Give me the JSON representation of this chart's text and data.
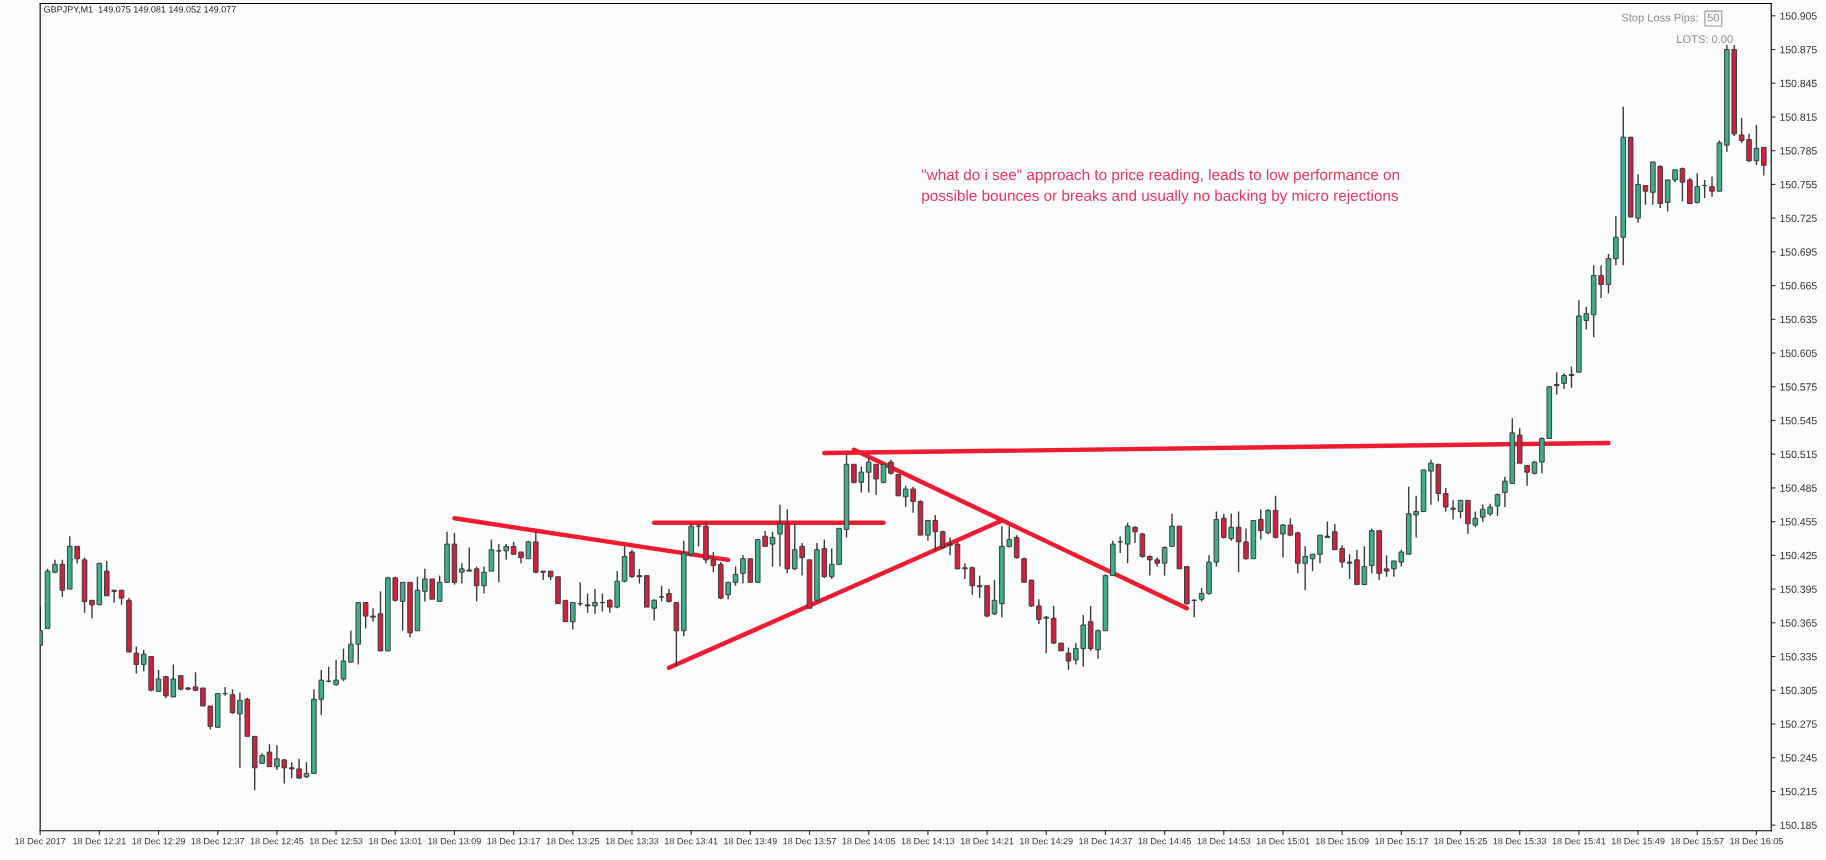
{
  "chart_data": {
    "type": "candlestick",
    "title": "GBPJPY,M1  149.075 149.081 149.052 149.077",
    "annotations": [
      "\"what do i see\" approach to price reading, leads to low performance on\npossible bounces or breaks and usually no backing by micro rejections",
      "Stop Loss Pips:",
      "50",
      "LOTS: 0.00"
    ],
    "x": [
      "2017-12-18T12:13",
      "2017-12-18T12:14",
      "2017-12-18T12:15",
      "2017-12-18T12:16",
      "2017-12-18T12:17",
      "2017-12-18T12:18",
      "2017-12-18T12:19",
      "2017-12-18T12:20",
      "2017-12-18T12:21",
      "2017-12-18T12:22",
      "2017-12-18T12:23",
      "2017-12-18T12:24",
      "2017-12-18T12:25",
      "2017-12-18T12:26",
      "2017-12-18T12:27",
      "2017-12-18T12:28",
      "2017-12-18T12:29",
      "2017-12-18T12:30",
      "2017-12-18T12:31",
      "2017-12-18T12:32",
      "2017-12-18T12:33",
      "2017-12-18T12:34",
      "2017-12-18T12:35",
      "2017-12-18T12:36",
      "2017-12-18T12:37",
      "2017-12-18T12:38",
      "2017-12-18T12:39",
      "2017-12-18T12:40",
      "2017-12-18T12:41",
      "2017-12-18T12:42",
      "2017-12-18T12:43",
      "2017-12-18T12:44",
      "2017-12-18T12:45",
      "2017-12-18T12:46",
      "2017-12-18T12:47",
      "2017-12-18T12:48",
      "2017-12-18T12:49",
      "2017-12-18T12:50",
      "2017-12-18T12:51",
      "2017-12-18T12:52",
      "2017-12-18T12:53",
      "2017-12-18T12:54",
      "2017-12-18T12:55",
      "2017-12-18T12:56",
      "2017-12-18T12:57",
      "2017-12-18T12:58",
      "2017-12-18T12:59",
      "2017-12-18T13:00",
      "2017-12-18T13:01",
      "2017-12-18T13:02",
      "2017-12-18T13:03",
      "2017-12-18T13:04",
      "2017-12-18T13:05",
      "2017-12-18T13:06",
      "2017-12-18T13:07",
      "2017-12-18T13:08",
      "2017-12-18T13:09",
      "2017-12-18T13:10",
      "2017-12-18T13:11",
      "2017-12-18T13:12",
      "2017-12-18T13:13",
      "2017-12-18T13:14",
      "2017-12-18T13:15",
      "2017-12-18T13:16",
      "2017-12-18T13:17",
      "2017-12-18T13:18",
      "2017-12-18T13:19",
      "2017-12-18T13:20",
      "2017-12-18T13:21",
      "2017-12-18T13:22",
      "2017-12-18T13:23",
      "2017-12-18T13:24",
      "2017-12-18T13:25",
      "2017-12-18T13:26",
      "2017-12-18T13:27",
      "2017-12-18T13:28",
      "2017-12-18T13:29",
      "2017-12-18T13:30",
      "2017-12-18T13:31",
      "2017-12-18T13:32",
      "2017-12-18T13:33",
      "2017-12-18T13:34",
      "2017-12-18T13:35",
      "2017-12-18T13:36",
      "2017-12-18T13:37",
      "2017-12-18T13:38",
      "2017-12-18T13:39",
      "2017-12-18T13:40",
      "2017-12-18T13:41",
      "2017-12-18T13:42",
      "2017-12-18T13:43",
      "2017-12-18T13:44",
      "2017-12-18T13:45",
      "2017-12-18T13:46",
      "2017-12-18T13:47",
      "2017-12-18T13:48",
      "2017-12-18T13:49",
      "2017-12-18T13:50",
      "2017-12-18T13:51",
      "2017-12-18T13:52",
      "2017-12-18T13:53",
      "2017-12-18T13:54",
      "2017-12-18T13:55",
      "2017-12-18T13:56",
      "2017-12-18T13:57",
      "2017-12-18T13:58",
      "2017-12-18T13:59",
      "2017-12-18T14:00",
      "2017-12-18T14:01",
      "2017-12-18T14:02",
      "2017-12-18T14:03",
      "2017-12-18T14:04",
      "2017-12-18T14:05",
      "2017-12-18T14:06",
      "2017-12-18T14:07",
      "2017-12-18T14:08",
      "2017-12-18T14:09",
      "2017-12-18T14:10",
      "2017-12-18T14:11",
      "2017-12-18T14:12",
      "2017-12-18T14:13",
      "2017-12-18T14:14",
      "2017-12-18T14:15",
      "2017-12-18T14:16",
      "2017-12-18T14:17",
      "2017-12-18T14:18",
      "2017-12-18T14:19",
      "2017-12-18T14:20",
      "2017-12-18T14:21",
      "2017-12-18T14:22",
      "2017-12-18T14:23",
      "2017-12-18T14:24",
      "2017-12-18T14:25",
      "2017-12-18T14:26",
      "2017-12-18T14:27",
      "2017-12-18T14:28",
      "2017-12-18T14:29",
      "2017-12-18T14:30",
      "2017-12-18T14:31",
      "2017-12-18T14:32",
      "2017-12-18T14:33",
      "2017-12-18T14:34",
      "2017-12-18T14:35",
      "2017-12-18T14:36",
      "2017-12-18T14:37",
      "2017-12-18T14:38",
      "2017-12-18T14:39",
      "2017-12-18T14:40",
      "2017-12-18T14:41",
      "2017-12-18T14:42",
      "2017-12-18T14:43",
      "2017-12-18T14:44",
      "2017-12-18T14:45",
      "2017-12-18T14:46",
      "2017-12-18T14:47",
      "2017-12-18T14:48",
      "2017-12-18T14:49",
      "2017-12-18T14:50",
      "2017-12-18T14:51",
      "2017-12-18T14:52",
      "2017-12-18T14:53",
      "2017-12-18T14:54",
      "2017-12-18T14:55",
      "2017-12-18T14:56",
      "2017-12-18T14:57",
      "2017-12-18T14:58",
      "2017-12-18T14:59",
      "2017-12-18T15:00",
      "2017-12-18T15:01",
      "2017-12-18T15:02",
      "2017-12-18T15:03",
      "2017-12-18T15:04",
      "2017-12-18T15:05",
      "2017-12-18T15:06",
      "2017-12-18T15:07",
      "2017-12-18T15:08",
      "2017-12-18T15:09",
      "2017-12-18T15:10",
      "2017-12-18T15:11",
      "2017-12-18T15:12",
      "2017-12-18T15:13",
      "2017-12-18T15:14",
      "2017-12-18T15:15",
      "2017-12-18T15:16",
      "2017-12-18T15:17",
      "2017-12-18T15:18",
      "2017-12-18T15:19",
      "2017-12-18T15:20",
      "2017-12-18T15:21",
      "2017-12-18T15:22",
      "2017-12-18T15:23",
      "2017-12-18T15:24",
      "2017-12-18T15:25",
      "2017-12-18T15:26",
      "2017-12-18T15:27",
      "2017-12-18T15:28",
      "2017-12-18T15:29",
      "2017-12-18T15:30",
      "2017-12-18T15:31",
      "2017-12-18T15:32",
      "2017-12-18T15:33",
      "2017-12-18T15:34",
      "2017-12-18T15:35",
      "2017-12-18T15:36",
      "2017-12-18T15:37",
      "2017-12-18T15:38",
      "2017-12-18T15:39",
      "2017-12-18T15:40",
      "2017-12-18T15:41",
      "2017-12-18T15:42",
      "2017-12-18T15:43",
      "2017-12-18T15:44",
      "2017-12-18T15:45",
      "2017-12-18T15:46",
      "2017-12-18T15:47",
      "2017-12-18T15:48",
      "2017-12-18T15:49",
      "2017-12-18T15:50",
      "2017-12-18T15:51",
      "2017-12-18T15:52",
      "2017-12-18T15:53",
      "2017-12-18T15:54",
      "2017-12-18T15:55",
      "2017-12-18T15:56",
      "2017-12-18T15:57",
      "2017-12-18T15:58",
      "2017-12-18T15:59",
      "2017-12-18T16:00",
      "2017-12-18T16:01",
      "2017-12-18T16:02",
      "2017-12-18T16:03",
      "2017-12-18T16:04",
      "2017-12-18T16:05",
      "2017-12-18T16:06"
    ],
    "ohlc": [
      [
        150.345,
        150.38,
        150.345,
        150.358
      ],
      [
        150.36,
        150.413,
        150.36,
        150.411
      ],
      [
        150.41,
        150.421,
        150.409,
        150.417
      ],
      [
        150.417,
        150.421,
        150.388,
        150.394
      ],
      [
        150.395,
        150.442,
        150.395,
        150.433
      ],
      [
        150.433,
        150.433,
        150.418,
        150.422
      ],
      [
        150.421,
        150.423,
        150.374,
        150.384
      ],
      [
        150.385,
        150.385,
        150.369,
        150.381
      ],
      [
        150.381,
        150.418,
        150.381,
        150.418
      ],
      [
        150.411,
        150.42,
        150.389,
        150.389
      ],
      [
        150.394,
        150.394,
        150.383,
        150.393
      ],
      [
        150.394,
        150.394,
        150.381,
        150.387
      ],
      [
        150.385,
        150.387,
        150.339,
        150.339
      ],
      [
        150.338,
        150.344,
        150.32,
        150.328
      ],
      [
        150.328,
        150.341,
        150.322,
        150.337
      ],
      [
        150.335,
        150.335,
        150.304,
        150.305
      ],
      [
        150.304,
        150.323,
        150.304,
        150.315
      ],
      [
        150.317,
        150.318,
        150.298,
        150.3
      ],
      [
        150.299,
        150.328,
        150.299,
        150.315
      ],
      [
        150.318,
        150.318,
        150.305,
        150.306
      ],
      [
        150.307,
        150.308,
        150.305,
        150.306
      ],
      [
        150.308,
        150.321,
        150.304,
        150.305
      ],
      [
        150.307,
        150.307,
        150.291,
        150.291
      ],
      [
        150.291,
        150.291,
        150.27,
        150.273
      ],
      [
        150.272,
        150.302,
        150.272,
        150.302
      ],
      [
        150.302,
        150.308,
        150.3,
        150.302
      ],
      [
        150.301,
        150.306,
        150.284,
        150.285
      ],
      [
        150.284,
        150.303,
        150.236,
        150.296
      ],
      [
        150.297,
        150.298,
        150.264,
        150.264
      ],
      [
        150.264,
        150.264,
        150.216,
        150.236
      ],
      [
        150.24,
        150.249,
        150.24,
        150.247
      ],
      [
        150.25,
        150.257,
        150.237,
        150.237
      ],
      [
        150.237,
        150.256,
        150.234,
        150.244
      ],
      [
        150.243,
        150.244,
        150.222,
        150.236
      ],
      [
        150.236,
        150.241,
        150.227,
        150.235
      ],
      [
        150.235,
        150.244,
        150.226,
        150.227
      ],
      [
        150.228,
        150.241,
        150.227,
        150.231
      ],
      [
        150.231,
        150.306,
        150.231,
        150.297
      ],
      [
        150.297,
        150.323,
        150.283,
        150.314
      ],
      [
        150.313,
        150.326,
        150.312,
        150.313
      ],
      [
        150.31,
        150.332,
        150.309,
        150.314
      ],
      [
        150.315,
        150.342,
        150.313,
        150.331
      ],
      [
        150.33,
        150.358,
        150.33,
        150.346
      ],
      [
        150.346,
        150.383,
        150.328,
        150.383
      ],
      [
        150.383,
        150.383,
        150.36,
        150.371
      ],
      [
        150.371,
        150.378,
        150.366,
        150.37
      ],
      [
        150.373,
        150.393,
        150.34,
        150.34
      ],
      [
        150.34,
        150.406,
        150.34,
        150.405
      ],
      [
        150.405,
        150.406,
        150.384,
        150.385
      ],
      [
        150.384,
        150.401,
        150.358,
        150.401
      ],
      [
        150.401,
        150.401,
        150.352,
        150.356
      ],
      [
        150.358,
        150.406,
        150.358,
        150.394
      ],
      [
        150.393,
        150.413,
        150.384,
        150.404
      ],
      [
        150.404,
        150.404,
        150.386,
        150.386
      ],
      [
        150.384,
        150.407,
        150.384,
        150.401
      ],
      [
        150.401,
        150.446,
        150.401,
        150.435
      ],
      [
        150.435,
        150.445,
        150.399,
        150.401
      ],
      [
        150.41,
        150.418,
        150.4,
        150.413
      ],
      [
        150.412,
        150.432,
        150.411,
        150.411
      ],
      [
        150.413,
        150.415,
        150.384,
        150.398
      ],
      [
        150.398,
        150.415,
        150.391,
        150.41
      ],
      [
        150.411,
        150.439,
        150.411,
        150.43
      ],
      [
        150.429,
        150.435,
        150.401,
        150.429
      ],
      [
        150.429,
        150.435,
        150.421,
        150.433
      ],
      [
        150.433,
        150.437,
        150.426,
        150.426
      ],
      [
        150.428,
        150.428,
        150.418,
        150.423
      ],
      [
        150.422,
        150.438,
        150.422,
        150.437
      ],
      [
        150.437,
        150.446,
        150.409,
        150.41
      ],
      [
        150.411,
        150.411,
        150.403,
        150.41
      ],
      [
        150.411,
        150.411,
        150.403,
        150.406
      ],
      [
        150.406,
        150.406,
        150.382,
        150.382
      ],
      [
        150.385,
        150.385,
        150.366,
        150.366
      ],
      [
        150.366,
        150.383,
        150.359,
        150.383
      ],
      [
        150.382,
        150.401,
        150.38,
        150.382
      ],
      [
        150.381,
        150.391,
        150.374,
        150.38
      ],
      [
        150.38,
        150.395,
        150.373,
        150.383
      ],
      [
        150.383,
        150.391,
        150.375,
        150.383
      ],
      [
        150.385,
        150.386,
        150.374,
        150.379
      ],
      [
        150.379,
        150.411,
        150.378,
        150.402
      ],
      [
        150.402,
        150.433,
        150.401,
        150.424
      ],
      [
        150.428,
        150.43,
        150.405,
        150.406
      ],
      [
        150.407,
        150.413,
        150.4,
        150.406
      ],
      [
        150.407,
        150.407,
        150.379,
        150.379
      ],
      [
        150.378,
        150.386,
        150.367,
        150.385
      ],
      [
        150.388,
        150.398,
        150.384,
        150.388
      ],
      [
        150.391,
        150.395,
        150.383,
        150.384
      ],
      [
        150.383,
        150.383,
        150.326,
        150.358
      ],
      [
        150.358,
        150.438,
        150.353,
        150.427
      ],
      [
        150.426,
        150.452,
        150.424,
        150.451
      ],
      [
        150.451,
        150.453,
        150.433,
        150.451
      ],
      [
        150.451,
        150.453,
        150.418,
        150.421
      ],
      [
        150.421,
        150.428,
        150.41,
        150.416
      ],
      [
        150.417,
        150.419,
        150.386,
        150.387
      ],
      [
        150.39,
        150.401,
        150.386,
        150.401
      ],
      [
        150.401,
        150.415,
        150.398,
        150.408
      ],
      [
        150.409,
        150.425,
        150.4,
        150.422
      ],
      [
        150.422,
        150.422,
        150.401,
        150.401
      ],
      [
        150.401,
        150.439,
        150.401,
        150.439
      ],
      [
        150.442,
        150.447,
        150.433,
        150.433
      ],
      [
        150.435,
        150.446,
        150.415,
        150.441
      ],
      [
        150.444,
        150.47,
        150.415,
        150.453
      ],
      [
        150.453,
        150.466,
        150.409,
        150.413
      ],
      [
        150.413,
        150.453,
        150.412,
        150.43
      ],
      [
        150.433,
        150.436,
        150.407,
        150.423
      ],
      [
        150.421,
        150.421,
        150.378,
        150.378
      ],
      [
        150.385,
        150.436,
        150.385,
        150.43
      ],
      [
        150.431,
        150.439,
        150.405,
        150.406
      ],
      [
        150.406,
        150.431,
        150.404,
        150.417
      ],
      [
        150.417,
        150.449,
        150.417,
        150.449
      ],
      [
        150.448,
        150.515,
        150.441,
        150.506
      ],
      [
        150.506,
        150.506,
        150.489,
        150.49
      ],
      [
        150.49,
        150.504,
        150.481,
        150.499
      ],
      [
        150.499,
        150.512,
        150.481,
        150.508
      ],
      [
        150.506,
        150.506,
        150.479,
        150.493
      ],
      [
        150.49,
        150.506,
        150.489,
        150.506
      ],
      [
        150.508,
        150.51,
        150.497,
        150.498
      ],
      [
        150.497,
        150.497,
        150.478,
        150.478
      ],
      [
        150.477,
        150.487,
        150.468,
        150.484
      ],
      [
        150.484,
        150.486,
        150.463,
        150.473
      ],
      [
        150.473,
        150.474,
        150.443,
        150.443
      ],
      [
        150.443,
        150.456,
        150.438,
        150.456
      ],
      [
        150.456,
        150.461,
        150.429,
        150.446
      ],
      [
        150.446,
        150.447,
        150.431,
        150.432
      ],
      [
        150.435,
        150.441,
        150.425,
        150.434
      ],
      [
        150.435,
        150.437,
        150.413,
        150.413
      ],
      [
        150.414,
        150.418,
        150.404,
        150.413
      ],
      [
        150.414,
        150.415,
        150.39,
        150.398
      ],
      [
        150.398,
        150.407,
        150.387,
        150.397
      ],
      [
        150.398,
        150.398,
        150.37,
        150.371
      ],
      [
        150.373,
        150.403,
        150.372,
        150.385
      ],
      [
        150.382,
        150.451,
        150.37,
        150.433
      ],
      [
        150.433,
        150.451,
        150.432,
        150.439
      ],
      [
        150.441,
        150.443,
        150.422,
        150.423
      ],
      [
        150.422,
        150.423,
        150.401,
        150.401
      ],
      [
        150.403,
        150.403,
        150.379,
        150.38
      ],
      [
        150.38,
        150.386,
        150.364,
        150.368
      ],
      [
        150.369,
        150.371,
        150.338,
        150.37
      ],
      [
        150.369,
        150.38,
        150.346,
        150.347
      ],
      [
        150.347,
        150.347,
        150.34,
        150.34
      ],
      [
        150.338,
        150.343,
        150.323,
        150.331
      ],
      [
        150.332,
        150.347,
        150.328,
        150.342
      ],
      [
        150.342,
        150.372,
        150.326,
        150.363
      ],
      [
        150.366,
        150.38,
        150.34,
        150.342
      ],
      [
        150.341,
        150.359,
        150.333,
        150.358
      ],
      [
        150.358,
        150.408,
        150.358,
        150.407
      ],
      [
        150.407,
        150.438,
        150.407,
        150.435
      ],
      [
        150.437,
        150.442,
        150.427,
        150.437
      ],
      [
        150.435,
        150.454,
        150.418,
        150.451
      ],
      [
        150.45,
        150.451,
        150.436,
        150.446
      ],
      [
        150.444,
        150.445,
        150.423,
        150.424
      ],
      [
        150.424,
        150.425,
        150.407,
        150.421
      ],
      [
        150.421,
        150.423,
        150.415,
        150.418
      ],
      [
        150.418,
        150.433,
        150.407,
        150.432
      ],
      [
        150.433,
        150.462,
        150.433,
        150.451
      ],
      [
        150.451,
        150.451,
        150.413,
        150.413
      ],
      [
        150.415,
        150.415,
        150.381,
        150.382
      ],
      [
        150.385,
        150.386,
        150.37,
        150.385
      ],
      [
        150.386,
        150.396,
        150.384,
        150.391
      ],
      [
        150.391,
        150.425,
        150.39,
        150.419
      ],
      [
        150.419,
        150.464,
        150.415,
        150.457
      ],
      [
        150.458,
        150.462,
        150.44,
        150.441
      ],
      [
        150.44,
        150.462,
        150.438,
        150.45
      ],
      [
        150.45,
        150.464,
        150.41,
        150.437
      ],
      [
        150.437,
        150.449,
        150.421,
        150.422
      ],
      [
        150.422,
        150.456,
        150.422,
        150.456
      ],
      [
        150.457,
        150.466,
        150.439,
        150.447
      ],
      [
        150.445,
        150.466,
        150.444,
        150.465
      ],
      [
        150.465,
        150.478,
        150.44,
        150.441
      ],
      [
        150.444,
        150.453,
        150.423,
        150.452
      ],
      [
        150.452,
        150.458,
        150.442,
        150.443
      ],
      [
        150.445,
        150.446,
        150.409,
        150.418
      ],
      [
        150.418,
        150.433,
        150.394,
        150.424
      ],
      [
        150.422,
        150.426,
        150.411,
        150.426
      ],
      [
        150.426,
        150.443,
        150.418,
        150.443
      ],
      [
        150.442,
        150.455,
        150.441,
        150.441
      ],
      [
        150.446,
        150.453,
        150.43,
        150.43
      ],
      [
        150.431,
        150.434,
        150.414,
        150.419
      ],
      [
        150.419,
        150.426,
        150.404,
        150.418
      ],
      [
        150.421,
        150.43,
        150.399,
        150.399
      ],
      [
        150.399,
        150.433,
        150.399,
        150.415
      ],
      [
        150.416,
        150.449,
        150.409,
        150.447
      ],
      [
        150.447,
        150.447,
        150.403,
        150.409
      ],
      [
        150.413,
        150.425,
        150.406,
        150.411
      ],
      [
        150.413,
        150.42,
        150.406,
        150.42
      ],
      [
        150.419,
        150.43,
        150.415,
        150.428
      ],
      [
        150.426,
        150.486,
        150.426,
        150.462
      ],
      [
        150.461,
        150.478,
        150.441,
        150.464
      ],
      [
        150.464,
        150.501,
        150.464,
        150.501
      ],
      [
        150.5,
        150.51,
        150.47,
        150.507
      ],
      [
        150.506,
        150.506,
        150.473,
        150.48
      ],
      [
        150.48,
        150.485,
        150.464,
        150.468
      ],
      [
        150.467,
        150.474,
        150.457,
        150.466
      ],
      [
        150.464,
        150.474,
        150.458,
        150.474
      ],
      [
        150.474,
        150.474,
        150.444,
        150.453
      ],
      [
        150.452,
        150.464,
        150.45,
        150.458
      ],
      [
        150.459,
        150.47,
        150.455,
        150.466
      ],
      [
        150.462,
        150.471,
        150.46,
        150.468
      ],
      [
        150.469,
        150.48,
        150.46,
        150.479
      ],
      [
        150.481,
        150.495,
        150.468,
        150.491
      ],
      [
        150.489,
        150.547,
        150.489,
        150.534
      ],
      [
        150.532,
        150.538,
        150.507,
        150.507
      ],
      [
        150.505,
        150.505,
        150.487,
        150.499
      ],
      [
        150.498,
        150.509,
        150.497,
        150.508
      ],
      [
        150.508,
        150.53,
        150.498,
        150.529
      ],
      [
        150.529,
        150.575,
        150.529,
        150.575
      ],
      [
        150.577,
        150.588,
        150.568,
        150.576
      ],
      [
        150.578,
        150.587,
        150.573,
        150.585
      ],
      [
        150.586,
        150.593,
        150.574,
        150.585
      ],
      [
        150.588,
        150.652,
        150.588,
        150.638
      ],
      [
        150.634,
        150.646,
        150.626,
        150.64
      ],
      [
        150.639,
        150.683,
        150.619,
        150.674
      ],
      [
        150.674,
        150.683,
        150.654,
        150.666
      ],
      [
        150.666,
        150.693,
        150.658,
        150.689
      ],
      [
        150.689,
        150.727,
        150.683,
        150.708
      ],
      [
        150.708,
        150.824,
        150.683,
        150.797
      ],
      [
        150.797,
        150.797,
        150.726,
        150.726
      ],
      [
        150.725,
        150.764,
        150.721,
        150.755
      ],
      [
        150.754,
        150.754,
        150.737,
        150.749
      ],
      [
        150.748,
        150.775,
        150.737,
        150.775
      ],
      [
        150.771,
        150.772,
        150.734,
        150.738
      ],
      [
        150.739,
        150.759,
        150.731,
        150.759
      ],
      [
        150.759,
        150.768,
        150.757,
        150.768
      ],
      [
        150.769,
        150.77,
        150.74,
        150.757
      ],
      [
        150.759,
        150.761,
        150.738,
        150.738
      ],
      [
        150.739,
        150.765,
        150.738,
        150.753
      ],
      [
        150.754,
        150.759,
        150.743,
        150.754
      ],
      [
        150.753,
        150.762,
        150.744,
        150.749
      ],
      [
        150.749,
        150.794,
        150.749,
        150.792
      ],
      [
        150.79,
        150.879,
        150.784,
        150.875
      ],
      [
        150.875,
        150.879,
        150.798,
        150.8
      ],
      [
        150.799,
        150.814,
        150.792,
        150.794
      ],
      [
        150.795,
        150.8,
        150.775,
        150.776
      ],
      [
        150.776,
        150.808,
        150.772,
        150.787
      ],
      [
        150.788,
        150.788,
        150.763,
        150.772
      ]
    ],
    "series": [
      {
        "type": "line",
        "color": "#ee1c2e",
        "x": [
          "2017-12-18T13:09",
          "2017-12-18T13:46"
        ],
        "values": [
          150.458,
          150.421
        ]
      },
      {
        "type": "line",
        "color": "#ee1c2e",
        "x": [
          "2017-12-18T13:36",
          "2017-12-18T14:07"
        ],
        "values": [
          150.454,
          150.454
        ]
      },
      {
        "type": "line",
        "color": "#ee1c2e",
        "x": [
          "2017-12-18T13:38",
          "2017-12-18T14:23"
        ],
        "values": [
          150.325,
          150.456
        ]
      },
      {
        "type": "line",
        "color": "#ee1c2e",
        "x": [
          "2017-12-18T14:03",
          "2017-12-18T14:48"
        ],
        "values": [
          150.519,
          150.378
        ]
      },
      {
        "type": "line",
        "color": "#ee1c2e",
        "x": [
          "2017-12-18T13:59",
          "2017-12-18T15:45"
        ],
        "values": [
          150.516,
          150.525
        ]
      }
    ],
    "xlim": [
      "2017-12-18T12:13",
      "2017-12-18T16:07"
    ],
    "xticks": [
      {
        "value": "2017-12-18T12:13",
        "label": "18 Dec 2017"
      },
      {
        "value": "2017-12-18T12:21",
        "label": "18 Dec 12:21"
      },
      {
        "value": "2017-12-18T12:29",
        "label": "18 Dec 12:29"
      },
      {
        "value": "2017-12-18T12:37",
        "label": "18 Dec 12:37"
      },
      {
        "value": "2017-12-18T12:45",
        "label": "18 Dec 12:45"
      },
      {
        "value": "2017-12-18T12:53",
        "label": "18 Dec 12:53"
      },
      {
        "value": "2017-12-18T13:01",
        "label": "18 Dec 13:01"
      },
      {
        "value": "2017-12-18T13:09",
        "label": "18 Dec 13:09"
      },
      {
        "value": "2017-12-18T13:17",
        "label": "18 Dec 13:17"
      },
      {
        "value": "2017-12-18T13:25",
        "label": "18 Dec 13:25"
      },
      {
        "value": "2017-12-18T13:33",
        "label": "18 Dec 13:33"
      },
      {
        "value": "2017-12-18T13:41",
        "label": "18 Dec 13:41"
      },
      {
        "value": "2017-12-18T13:49",
        "label": "18 Dec 13:49"
      },
      {
        "value": "2017-12-18T13:57",
        "label": "18 Dec 13:57"
      },
      {
        "value": "2017-12-18T14:05",
        "label": "18 Dec 14:05"
      },
      {
        "value": "2017-12-18T14:13",
        "label": "18 Dec 14:13"
      },
      {
        "value": "2017-12-18T14:21",
        "label": "18 Dec 14:21"
      },
      {
        "value": "2017-12-18T14:29",
        "label": "18 Dec 14:29"
      },
      {
        "value": "2017-12-18T14:37",
        "label": "18 Dec 14:37"
      },
      {
        "value": "2017-12-18T14:45",
        "label": "18 Dec 14:45"
      },
      {
        "value": "2017-12-18T14:53",
        "label": "18 Dec 14:53"
      },
      {
        "value": "2017-12-18T15:01",
        "label": "18 Dec 15:01"
      },
      {
        "value": "2017-12-18T15:09",
        "label": "18 Dec 15:09"
      },
      {
        "value": "2017-12-18T15:17",
        "label": "18 Dec 15:17"
      },
      {
        "value": "2017-12-18T15:25",
        "label": "18 Dec 15:25"
      },
      {
        "value": "2017-12-18T15:33",
        "label": "18 Dec 15:33"
      },
      {
        "value": "2017-12-18T15:41",
        "label": "18 Dec 15:41"
      },
      {
        "value": "2017-12-18T15:49",
        "label": "18 Dec 15:49"
      },
      {
        "value": "2017-12-18T15:57",
        "label": "18 Dec 15:57"
      },
      {
        "value": "2017-12-18T16:05",
        "label": "18 Dec 16:05"
      }
    ],
    "ylim": [
      150.18,
      150.916
    ],
    "yticks": [
      {
        "value": 150.185,
        "label": "150.185"
      },
      {
        "value": 150.215,
        "label": "150.215"
      },
      {
        "value": 150.245,
        "label": "150.245"
      },
      {
        "value": 150.275,
        "label": "150.275"
      },
      {
        "value": 150.305,
        "label": "150.305"
      },
      {
        "value": 150.335,
        "label": "150.335"
      },
      {
        "value": 150.365,
        "label": "150.365"
      },
      {
        "value": 150.395,
        "label": "150.395"
      },
      {
        "value": 150.425,
        "label": "150.425"
      },
      {
        "value": 150.455,
        "label": "150.455"
      },
      {
        "value": 150.485,
        "label": "150.485"
      },
      {
        "value": 150.515,
        "label": "150.515"
      },
      {
        "value": 150.545,
        "label": "150.545"
      },
      {
        "value": 150.575,
        "label": "150.575"
      },
      {
        "value": 150.605,
        "label": "150.605"
      },
      {
        "value": 150.635,
        "label": "150.635"
      },
      {
        "value": 150.665,
        "label": "150.665"
      },
      {
        "value": 150.695,
        "label": "150.695"
      },
      {
        "value": 150.725,
        "label": "150.725"
      },
      {
        "value": 150.755,
        "label": "150.755"
      },
      {
        "value": 150.785,
        "label": "150.785"
      },
      {
        "value": 150.815,
        "label": "150.815"
      },
      {
        "value": 150.845,
        "label": "150.845"
      },
      {
        "value": 150.875,
        "label": "150.875"
      },
      {
        "value": 150.905,
        "label": "150.905"
      }
    ],
    "grid": false,
    "legend": false
  }
}
